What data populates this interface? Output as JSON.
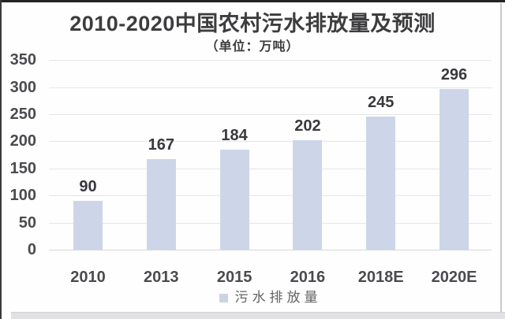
{
  "chart_data": {
    "type": "bar",
    "title": "2010-2020中国农村污水排放量及预测",
    "subtitle": "（单位：万吨）",
    "unit": "万吨",
    "categories": [
      "2010",
      "2013",
      "2015",
      "2016",
      "2018E",
      "2020E"
    ],
    "values": [
      90,
      167,
      184,
      202,
      245,
      296
    ],
    "series": [
      {
        "name": "污水排放量",
        "values": [
          90,
          167,
          184,
          202,
          245,
          296
        ]
      }
    ],
    "legend": [
      "污水排放量"
    ],
    "legend_position": "bottom",
    "xlabel": "",
    "ylabel": "",
    "ylim": [
      0,
      350
    ],
    "ytick_step": 50,
    "yticks": [
      0,
      50,
      100,
      150,
      200,
      250,
      300,
      350
    ],
    "grid": true,
    "data_labels_shown": true
  },
  "colors": {
    "bar": "#cdd6e8",
    "grid": "#e5e5e7",
    "zero_line": "#d8d8da",
    "title_text": "#3d3d3f",
    "axis_text": "#4b4b4f",
    "value_text": "#39393d",
    "legend_text": "#636366",
    "legend_swatch": "#ccd3e2"
  }
}
